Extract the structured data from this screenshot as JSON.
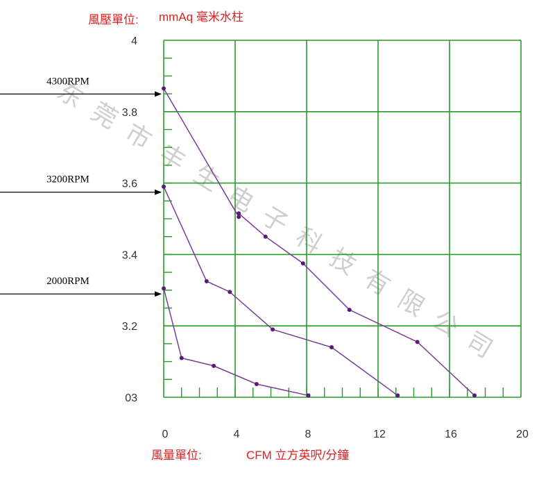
{
  "chart_data": {
    "type": "line",
    "title": "",
    "ylabel_prefix": "風壓單位:",
    "ylabel_unit": "mmAq 毫米水柱",
    "xlabel_prefix": "風量單位:",
    "xlabel_unit": "CFM 立方英呎/分鐘",
    "xlim": [
      0,
      20
    ],
    "ylim": [
      3.0,
      4.0
    ],
    "x_ticks": [
      {
        "value": 0,
        "label": "0"
      },
      {
        "value": 4,
        "label": "4"
      },
      {
        "value": 8,
        "label": "8"
      },
      {
        "value": 12,
        "label": "12"
      },
      {
        "value": 16,
        "label": "16"
      },
      {
        "value": 20,
        "label": "20"
      }
    ],
    "y_ticks": [
      {
        "value": 3.0,
        "label": "03"
      },
      {
        "value": 3.2,
        "label": "3.2"
      },
      {
        "value": 3.4,
        "label": "3.4"
      },
      {
        "value": 3.6,
        "label": "3.6"
      },
      {
        "value": 3.8,
        "label": "3.8"
      },
      {
        "value": 4.0,
        "label": "4"
      }
    ],
    "grid": true,
    "series": [
      {
        "name": "4300RPM",
        "points": [
          [
            0.0,
            3.865
          ],
          [
            4.2,
            3.505
          ],
          [
            4.2,
            3.515
          ],
          [
            5.7,
            3.45
          ],
          [
            7.8,
            3.375
          ],
          [
            10.4,
            3.245
          ],
          [
            14.2,
            3.155
          ],
          [
            17.4,
            3.005
          ]
        ]
      },
      {
        "name": "3200RPM",
        "points": [
          [
            0.0,
            3.59
          ],
          [
            2.4,
            3.325
          ],
          [
            3.7,
            3.295
          ],
          [
            6.1,
            3.19
          ],
          [
            9.4,
            3.14
          ],
          [
            13.1,
            3.005
          ]
        ]
      },
      {
        "name": "2000RPM",
        "points": [
          [
            0.0,
            3.305
          ],
          [
            1.0,
            3.11
          ],
          [
            2.8,
            3.088
          ],
          [
            5.2,
            3.037
          ],
          [
            8.1,
            3.005
          ]
        ]
      }
    ],
    "watermark": [
      "东",
      "莞",
      "市",
      "丰",
      "生",
      "电",
      "子",
      "科",
      "技",
      "有",
      "限",
      "公",
      "司"
    ],
    "colors": {
      "grid": "#2a9a2a",
      "line": "#7a3a9a",
      "point": "#5a1a7a",
      "label": "#e02020",
      "axis_text": "#333333"
    }
  }
}
